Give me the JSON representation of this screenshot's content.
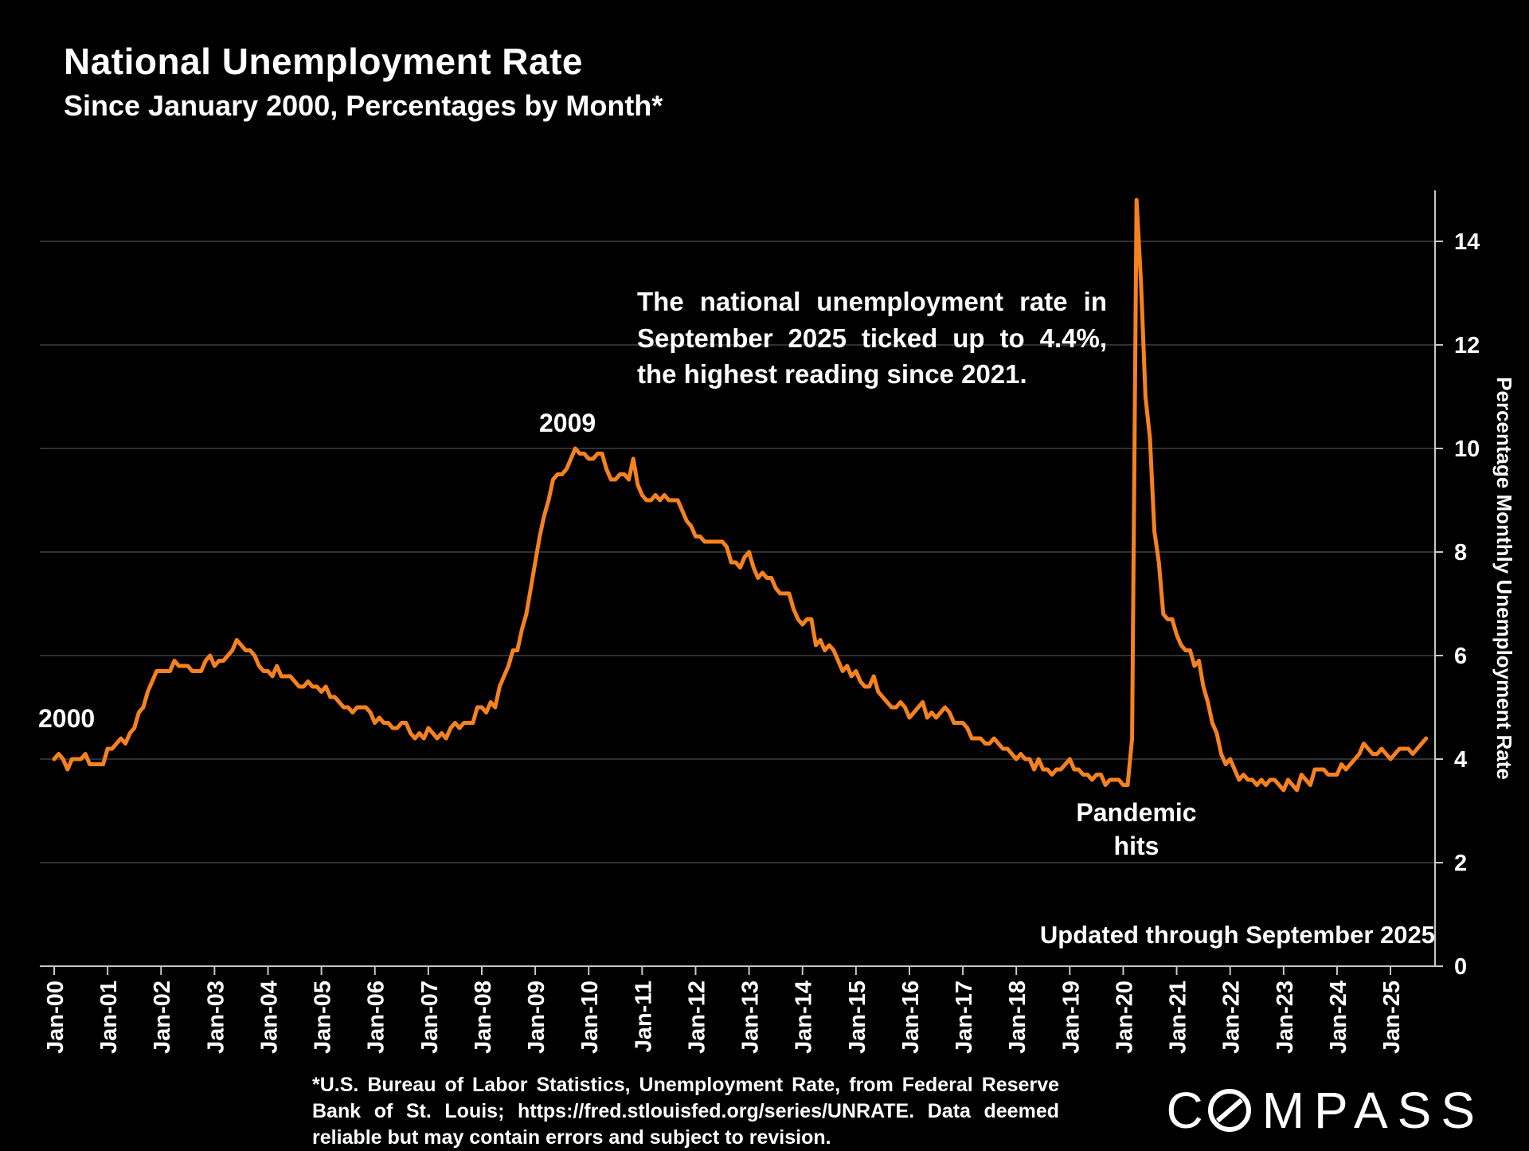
{
  "title": "National Unemployment Rate",
  "subtitle": "Since January 2000, Percentages by Month*",
  "annotations": {
    "callout": "The national unemployment rate in September 2025 ticked up to 4.4%, the highest reading since 2021.",
    "peak_2009": "2009",
    "start_2000": "2000",
    "pandemic": "Pandemic\nhits",
    "updated": "Updated through September 2025"
  },
  "footnote": "*U.S. Bureau of Labor Statistics, Unemployment Rate, from Federal Reserve Bank of St. Louis; https://fred.stlouisfed.org/series/UNRATE. Data deemed reliable but may contain errors and subject to revision.",
  "logo": {
    "text": "COMPASS",
    "prefix": "C",
    "suffix": "MPASS"
  },
  "colors": {
    "background": "#000000",
    "line": "#F5821F",
    "grid": "#414141",
    "axis": "#c8c8c8",
    "text": "#ffffff"
  },
  "chart_data": {
    "type": "line",
    "title": "National Unemployment Rate",
    "subtitle": "Since January 2000, Percentages by Month*",
    "ylabel": "Percentage Monthly Unemployment Rate",
    "xlabel": "",
    "ylim": [
      0,
      15
    ],
    "yticks": [
      0,
      2,
      4,
      6,
      8,
      10,
      12,
      14
    ],
    "grid": "horizontal",
    "legend": "none",
    "start": "2000-01",
    "end": "2025-09",
    "x_tick_labels": [
      "Jan-00",
      "Jan-01",
      "Jan-02",
      "Jan-03",
      "Jan-04",
      "Jan-05",
      "Jan-06",
      "Jan-07",
      "Jan-08",
      "Jan-09",
      "Jan-10",
      "Jan-11",
      "Jan-12",
      "Jan-13",
      "Jan-14",
      "Jan-15",
      "Jan-16",
      "Jan-17",
      "Jan-18",
      "Jan-19",
      "Jan-20",
      "Jan-21",
      "Jan-22",
      "Jan-23",
      "Jan-24",
      "Jan-25"
    ],
    "series": [
      {
        "name": "Unemployment Rate",
        "values": [
          4.0,
          4.1,
          4.0,
          3.8,
          4.0,
          4.0,
          4.0,
          4.1,
          3.9,
          3.9,
          3.9,
          3.9,
          4.2,
          4.2,
          4.3,
          4.4,
          4.3,
          4.5,
          4.6,
          4.9,
          5.0,
          5.3,
          5.5,
          5.7,
          5.7,
          5.7,
          5.7,
          5.9,
          5.8,
          5.8,
          5.8,
          5.7,
          5.7,
          5.7,
          5.9,
          6.0,
          5.8,
          5.9,
          5.9,
          6.0,
          6.1,
          6.3,
          6.2,
          6.1,
          6.1,
          6.0,
          5.8,
          5.7,
          5.7,
          5.6,
          5.8,
          5.6,
          5.6,
          5.6,
          5.5,
          5.4,
          5.4,
          5.5,
          5.4,
          5.4,
          5.3,
          5.4,
          5.2,
          5.2,
          5.1,
          5.0,
          5.0,
          4.9,
          5.0,
          5.0,
          5.0,
          4.9,
          4.7,
          4.8,
          4.7,
          4.7,
          4.6,
          4.6,
          4.7,
          4.7,
          4.5,
          4.4,
          4.5,
          4.4,
          4.6,
          4.5,
          4.4,
          4.5,
          4.4,
          4.6,
          4.7,
          4.6,
          4.7,
          4.7,
          4.7,
          5.0,
          5.0,
          4.9,
          5.1,
          5.0,
          5.4,
          5.6,
          5.8,
          6.1,
          6.1,
          6.5,
          6.8,
          7.3,
          7.8,
          8.3,
          8.7,
          9.0,
          9.4,
          9.5,
          9.5,
          9.6,
          9.8,
          10.0,
          9.9,
          9.9,
          9.8,
          9.8,
          9.9,
          9.9,
          9.6,
          9.4,
          9.4,
          9.5,
          9.5,
          9.4,
          9.8,
          9.3,
          9.1,
          9.0,
          9.0,
          9.1,
          9.0,
          9.1,
          9.0,
          9.0,
          9.0,
          8.8,
          8.6,
          8.5,
          8.3,
          8.3,
          8.2,
          8.2,
          8.2,
          8.2,
          8.2,
          8.1,
          7.8,
          7.8,
          7.7,
          7.9,
          8.0,
          7.7,
          7.5,
          7.6,
          7.5,
          7.5,
          7.3,
          7.2,
          7.2,
          7.2,
          6.9,
          6.7,
          6.6,
          6.7,
          6.7,
          6.2,
          6.3,
          6.1,
          6.2,
          6.1,
          5.9,
          5.7,
          5.8,
          5.6,
          5.7,
          5.5,
          5.4,
          5.4,
          5.6,
          5.3,
          5.2,
          5.1,
          5.0,
          5.0,
          5.1,
          5.0,
          4.8,
          4.9,
          5.0,
          5.1,
          4.8,
          4.9,
          4.8,
          4.9,
          5.0,
          4.9,
          4.7,
          4.7,
          4.7,
          4.6,
          4.4,
          4.4,
          4.4,
          4.3,
          4.3,
          4.4,
          4.3,
          4.2,
          4.2,
          4.1,
          4.0,
          4.1,
          4.0,
          4.0,
          3.8,
          4.0,
          3.8,
          3.8,
          3.7,
          3.8,
          3.8,
          3.9,
          4.0,
          3.8,
          3.8,
          3.7,
          3.7,
          3.6,
          3.7,
          3.7,
          3.5,
          3.6,
          3.6,
          3.6,
          3.5,
          3.5,
          4.4,
          14.8,
          13.2,
          11.0,
          10.2,
          8.4,
          7.8,
          6.8,
          6.7,
          6.7,
          6.4,
          6.2,
          6.1,
          6.1,
          5.8,
          5.9,
          5.4,
          5.1,
          4.7,
          4.5,
          4.1,
          3.9,
          4.0,
          3.8,
          3.6,
          3.7,
          3.6,
          3.6,
          3.5,
          3.6,
          3.5,
          3.6,
          3.6,
          3.5,
          3.4,
          3.6,
          3.5,
          3.4,
          3.7,
          3.6,
          3.5,
          3.8,
          3.8,
          3.8,
          3.7,
          3.7,
          3.7,
          3.9,
          3.8,
          3.9,
          4.0,
          4.1,
          4.3,
          4.2,
          4.1,
          4.1,
          4.2,
          4.1,
          4.0,
          4.1,
          4.2,
          4.2,
          4.2,
          4.1,
          4.2,
          4.3,
          4.4
        ]
      }
    ]
  }
}
